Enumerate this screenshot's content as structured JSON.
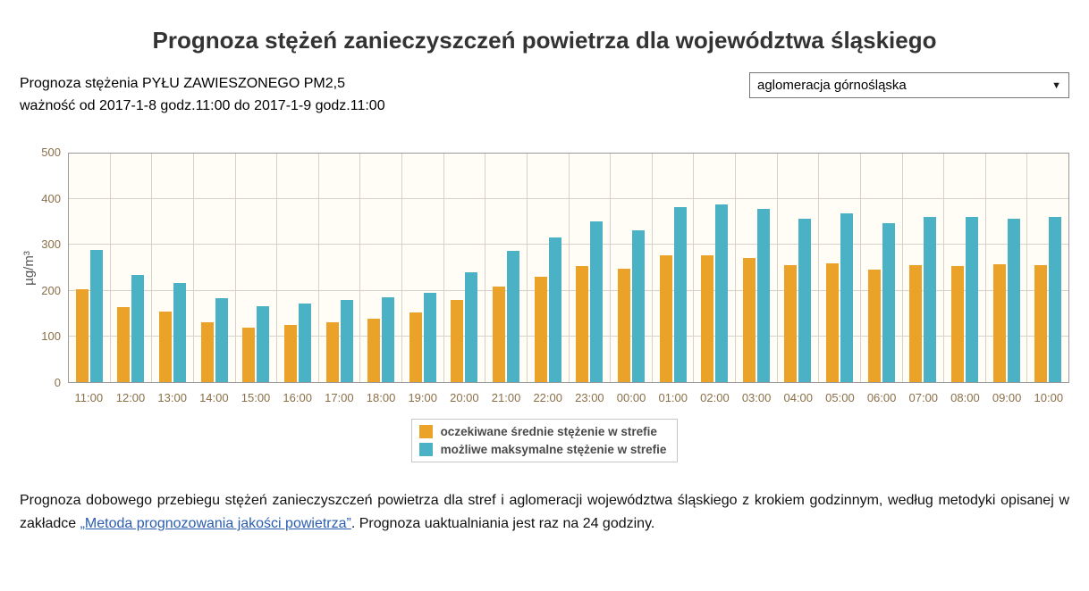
{
  "header": {
    "title": "Prognoza stężeń zanieczyszczeń powietrza dla województwa śląskiego"
  },
  "subtitle": {
    "line1": "Prognoza stężenia PYŁU ZAWIESZONEGO PM2,5",
    "line2": "ważność od 2017-1-8 godz.11:00 do 2017-1-9 godz.11:00"
  },
  "region_select": {
    "value": "aglomeracja górnośląska"
  },
  "chart_data": {
    "type": "bar",
    "title": "",
    "xlabel": "",
    "ylabel": "µg/m³",
    "ylim": [
      0,
      500
    ],
    "yticks": [
      0,
      100,
      200,
      300,
      400,
      500
    ],
    "grid": true,
    "legend_position": "bottom-center",
    "plot_bg": "#fffdf6",
    "gridline_color": "#d6d2c9",
    "tick_color": "#8b6f47",
    "categories": [
      "11:00",
      "12:00",
      "13:00",
      "14:00",
      "15:00",
      "16:00",
      "17:00",
      "18:00",
      "19:00",
      "20:00",
      "21:00",
      "22:00",
      "23:00",
      "00:00",
      "01:00",
      "02:00",
      "03:00",
      "04:00",
      "05:00",
      "06:00",
      "07:00",
      "08:00",
      "09:00",
      "10:00"
    ],
    "series": [
      {
        "name": "oczekiwane średnie stężenie w strefie",
        "color": "#EAA228",
        "values": [
          203,
          165,
          154,
          131,
          120,
          125,
          131,
          139,
          152,
          180,
          209,
          231,
          254,
          249,
          277,
          277,
          271,
          256,
          260,
          246,
          256,
          254,
          257,
          256
        ]
      },
      {
        "name": "możliwe maksymalne stężenie w strefie",
        "color": "#4BB2C5",
        "values": [
          290,
          235,
          216,
          184,
          167,
          172,
          180,
          185,
          195,
          240,
          287,
          316,
          351,
          333,
          382,
          389,
          379,
          357,
          370,
          347,
          362,
          361,
          357,
          361
        ]
      }
    ]
  },
  "footer": {
    "text_before": "Prognoza dobowego przebiegu stężeń zanieczyszczeń powietrza dla stref i aglomeracji województwa śląskiego z krokiem godzinnym, według metodyki opisanej w zakładce ",
    "link_text": "„Metoda prognozowania jakości powietrza”",
    "text_after": ". Prognoza uaktualniania jest raz na 24 godziny."
  }
}
